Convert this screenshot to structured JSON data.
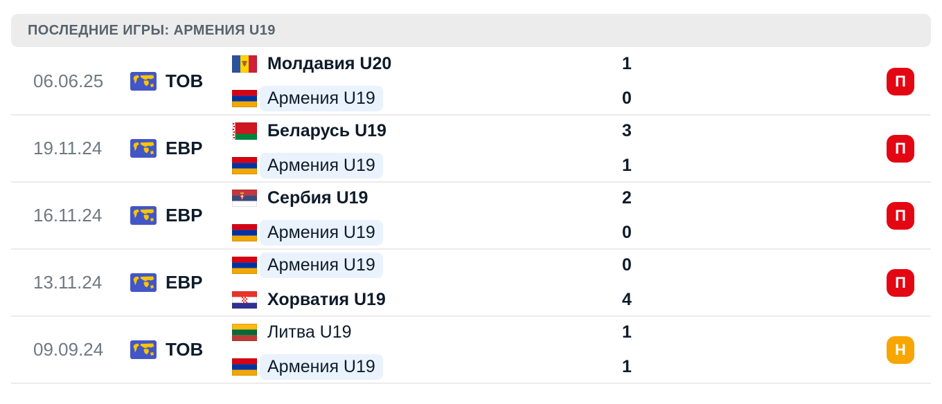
{
  "header": {
    "title": "ПОСЛЕДНИЕ ИГРЫ: АРМЕНИЯ U19"
  },
  "colors": {
    "loss_badge": "#e30613",
    "draw_badge": "#f7a600",
    "highlight_pill": "#eaf2fd",
    "header_bg": "#ececec",
    "header_text": "#57636c",
    "date_text": "#6f7981",
    "main_text": "#0e1b2a",
    "divider": "#ebebeb",
    "comp_icon_bg": "#4356c6",
    "comp_icon_map": "#f8c600"
  },
  "matches": [
    {
      "date": "06.06.25",
      "competition": "ТОВ",
      "teams": [
        {
          "name": "Молдавия U20",
          "flag": "moldova",
          "winner": true,
          "highlighted": false,
          "score": "1"
        },
        {
          "name": "Армения U19",
          "flag": "armenia",
          "winner": false,
          "highlighted": true,
          "score": "0"
        }
      ],
      "result": {
        "label": "П",
        "type": "loss"
      }
    },
    {
      "date": "19.11.24",
      "competition": "ЕВР",
      "teams": [
        {
          "name": "Беларусь U19",
          "flag": "belarus",
          "winner": true,
          "highlighted": false,
          "score": "3"
        },
        {
          "name": "Армения U19",
          "flag": "armenia",
          "winner": false,
          "highlighted": true,
          "score": "1"
        }
      ],
      "result": {
        "label": "П",
        "type": "loss"
      }
    },
    {
      "date": "16.11.24",
      "competition": "ЕВР",
      "teams": [
        {
          "name": "Сербия U19",
          "flag": "serbia",
          "winner": true,
          "highlighted": false,
          "score": "2"
        },
        {
          "name": "Армения U19",
          "flag": "armenia",
          "winner": false,
          "highlighted": true,
          "score": "0"
        }
      ],
      "result": {
        "label": "П",
        "type": "loss"
      }
    },
    {
      "date": "13.11.24",
      "competition": "ЕВР",
      "teams": [
        {
          "name": "Армения U19",
          "flag": "armenia",
          "winner": false,
          "highlighted": true,
          "score": "0"
        },
        {
          "name": "Хорватия U19",
          "flag": "croatia",
          "winner": true,
          "highlighted": false,
          "score": "4"
        }
      ],
      "result": {
        "label": "П",
        "type": "loss"
      }
    },
    {
      "date": "09.09.24",
      "competition": "ТОВ",
      "teams": [
        {
          "name": "Литва U19",
          "flag": "lithuania",
          "winner": false,
          "highlighted": false,
          "score": "1"
        },
        {
          "name": "Армения U19",
          "flag": "armenia",
          "winner": false,
          "highlighted": true,
          "score": "1"
        }
      ],
      "result": {
        "label": "Н",
        "type": "draw"
      }
    }
  ]
}
